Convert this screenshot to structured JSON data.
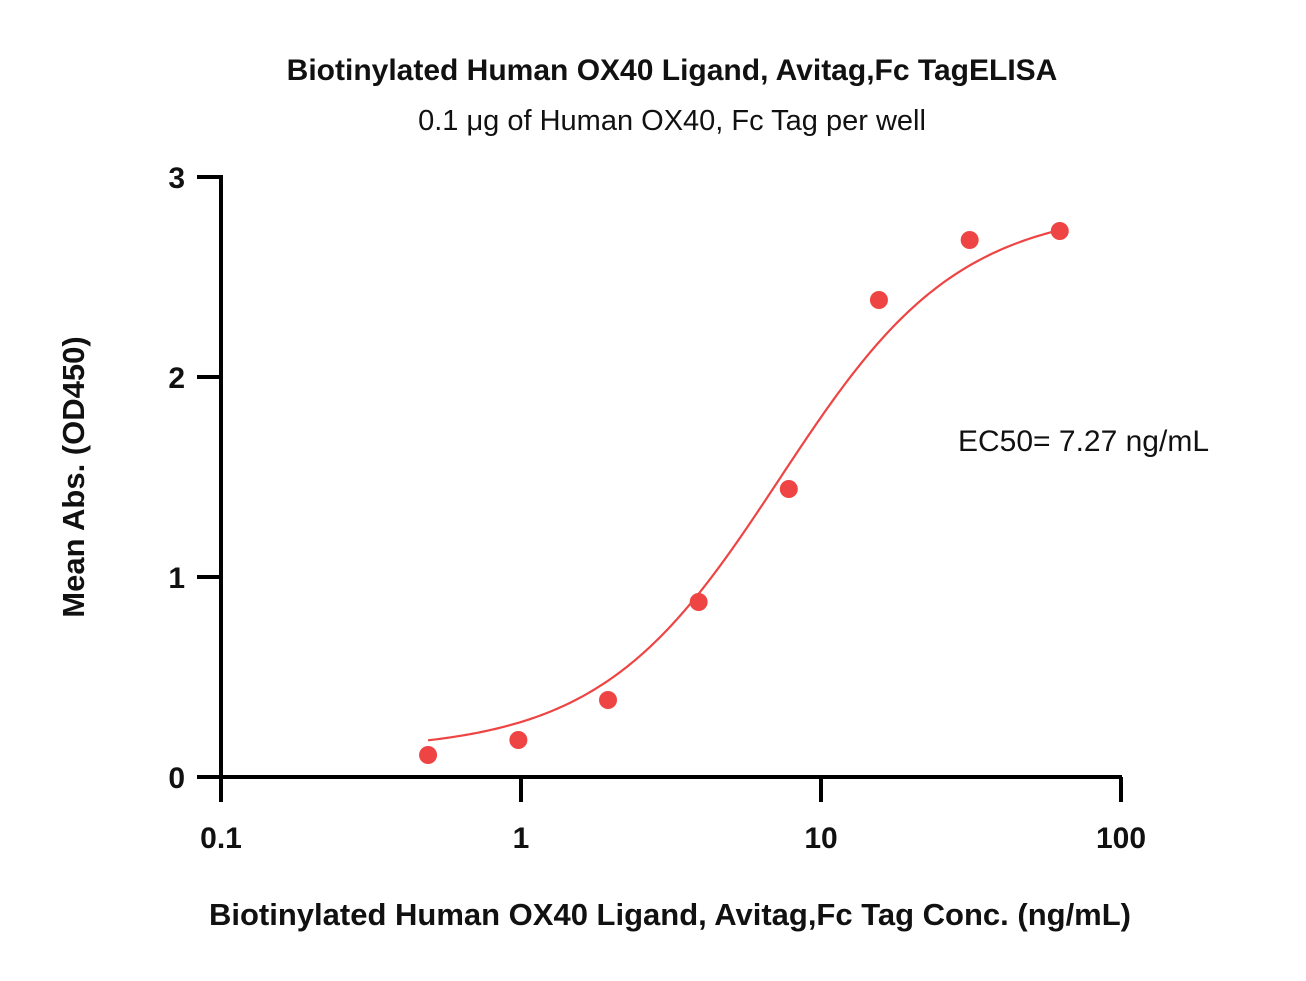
{
  "chart_data": {
    "type": "scatter",
    "title": "Biotinylated Human OX40 Ligand, Avitag,Fc TagELISA",
    "subtitle": "0.1 μg of Human OX40, Fc Tag per well",
    "xlabel": "Biotinylated Human OX40 Ligand, Avitag,Fc Tag Conc. (ng/mL)",
    "ylabel": "Mean Abs. (OD450)",
    "xscale": "log",
    "xlim": [
      0.1,
      100
    ],
    "ylim": [
      0,
      3
    ],
    "xticks": [
      0.1,
      1,
      10,
      100
    ],
    "xtick_labels": [
      "0.1",
      "1",
      "10",
      "100"
    ],
    "yticks": [
      0,
      1,
      2,
      3
    ],
    "ytick_labels": [
      "0",
      "1",
      "2",
      "3"
    ],
    "grid": false,
    "legend": "none",
    "series": [
      {
        "color": "#ee4444",
        "points": [
          {
            "x": 0.49,
            "y": 0.11
          },
          {
            "x": 0.98,
            "y": 0.185
          },
          {
            "x": 1.95,
            "y": 0.385
          },
          {
            "x": 3.91,
            "y": 0.875
          },
          {
            "x": 7.81,
            "y": 1.44
          },
          {
            "x": 15.6,
            "y": 2.385
          },
          {
            "x": 31.3,
            "y": 2.685
          },
          {
            "x": 62.5,
            "y": 2.73
          }
        ]
      }
    ],
    "fit": {
      "model": "4PL",
      "bottom": 0.13,
      "top": 2.85,
      "ec50": 7.27,
      "hill": 1.45,
      "x_range": [
        0.49,
        62.5
      ],
      "color": "#ee4444"
    },
    "annotations": [
      {
        "text": "EC50= 7.27 ng/mL"
      }
    ]
  }
}
